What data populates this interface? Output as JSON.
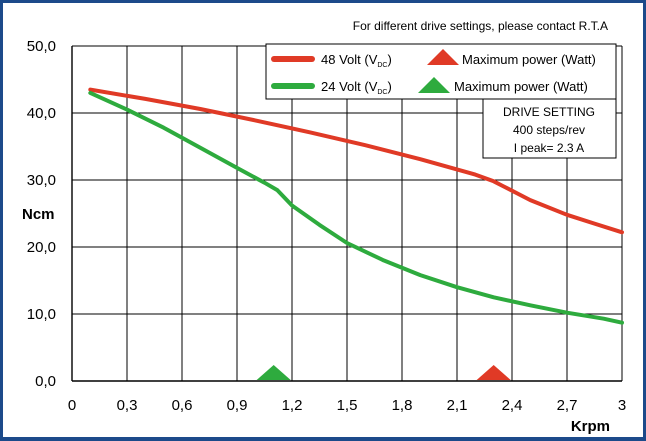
{
  "chart_data": {
    "type": "line",
    "note": "For different drive settings, please contact R.T.A",
    "xlabel": "Krpm",
    "ylabel": "Ncm",
    "xlim": [
      0,
      3
    ],
    "ylim": [
      0,
      50
    ],
    "x_ticks": [
      "0",
      "0,3",
      "0,6",
      "0,9",
      "1,2",
      "1,5",
      "1,8",
      "2,1",
      "2,4",
      "2,7",
      "3"
    ],
    "y_ticks": [
      "0,0",
      "10,0",
      "20,0",
      "30,0",
      "40,0",
      "50,0"
    ],
    "x_tick_values": [
      0,
      0.3,
      0.6,
      0.9,
      1.2,
      1.5,
      1.8,
      2.1,
      2.4,
      2.7,
      3.0
    ],
    "y_tick_values": [
      0,
      10,
      20,
      30,
      40,
      50
    ],
    "grid": true,
    "legend_position": "top-right",
    "series": [
      {
        "name": "48 Volt (VDC)",
        "name_main": "48 Volt (V",
        "name_sub": "DC",
        "name_close": ")",
        "color": "#e03a26",
        "marker_label": "Maximum power (Watt)",
        "max_power_x": 2.3,
        "x": [
          0.1,
          0.4,
          0.7,
          1.0,
          1.3,
          1.6,
          1.9,
          2.2,
          2.3,
          2.35,
          2.5,
          2.7,
          2.85,
          3.0
        ],
        "y": [
          43.5,
          42.1,
          40.6,
          38.9,
          37.1,
          35.2,
          33.1,
          30.8,
          29.8,
          29.1,
          27.0,
          24.8,
          23.5,
          22.2
        ]
      },
      {
        "name": "24 Volt (VDC)",
        "name_main": "24 Volt (V",
        "name_sub": "DC",
        "name_close": ")",
        "color": "#2eab3e",
        "marker_label": "Maximum power (Watt)",
        "max_power_x": 1.1,
        "x": [
          0.1,
          0.3,
          0.5,
          0.7,
          0.9,
          1.05,
          1.12,
          1.2,
          1.35,
          1.5,
          1.7,
          1.9,
          2.1,
          2.3,
          2.5,
          2.7,
          2.9,
          3.0
        ],
        "y": [
          43.0,
          40.5,
          37.8,
          34.8,
          31.8,
          29.6,
          28.5,
          26.2,
          23.3,
          20.6,
          18.0,
          15.8,
          14.0,
          12.5,
          11.3,
          10.2,
          9.3,
          8.7
        ]
      }
    ],
    "drive_setting": {
      "title": "DRIVE SETTING",
      "steps": "400 steps/rev",
      "peak": "I peak= 2.3 A"
    }
  }
}
